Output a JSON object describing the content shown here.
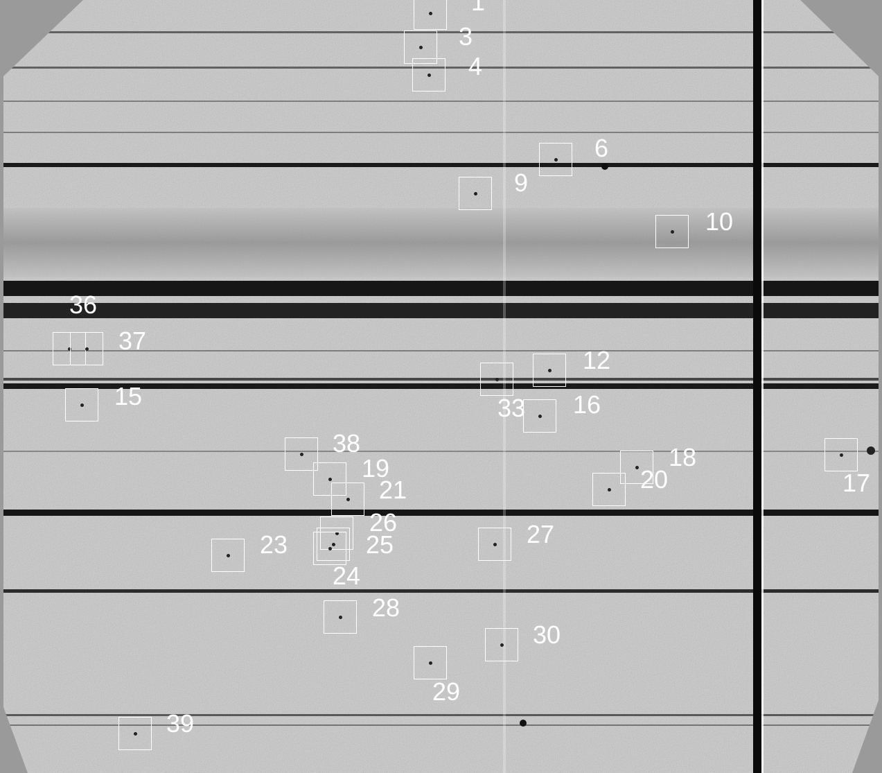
{
  "image": {
    "kind": "astronomical-detector-frame",
    "background_color": "#9a9a9a",
    "field_color": "#cfcfcf",
    "stripe_color": "#111111",
    "box_color": "#ffffff"
  },
  "sources": [
    {
      "id": "1",
      "label": "1"
    },
    {
      "id": "3",
      "label": "3"
    },
    {
      "id": "4",
      "label": "4"
    },
    {
      "id": "6",
      "label": "6"
    },
    {
      "id": "9",
      "label": "9"
    },
    {
      "id": "10",
      "label": "10"
    },
    {
      "id": "36",
      "label": "36"
    },
    {
      "id": "37",
      "label": "37"
    },
    {
      "id": "12",
      "label": "12"
    },
    {
      "id": "33",
      "label": "33"
    },
    {
      "id": "15",
      "label": "15"
    },
    {
      "id": "16",
      "label": "16"
    },
    {
      "id": "38",
      "label": "38"
    },
    {
      "id": "19",
      "label": "19"
    },
    {
      "id": "21",
      "label": "21"
    },
    {
      "id": "18",
      "label": "18"
    },
    {
      "id": "20",
      "label": "20"
    },
    {
      "id": "17",
      "label": "17"
    },
    {
      "id": "26",
      "label": "26"
    },
    {
      "id": "25",
      "label": "25"
    },
    {
      "id": "24",
      "label": "24"
    },
    {
      "id": "23",
      "label": "23"
    },
    {
      "id": "27",
      "label": "27"
    },
    {
      "id": "28",
      "label": "28"
    },
    {
      "id": "30",
      "label": "30"
    },
    {
      "id": "29",
      "label": "29"
    },
    {
      "id": "39",
      "label": "39"
    }
  ]
}
